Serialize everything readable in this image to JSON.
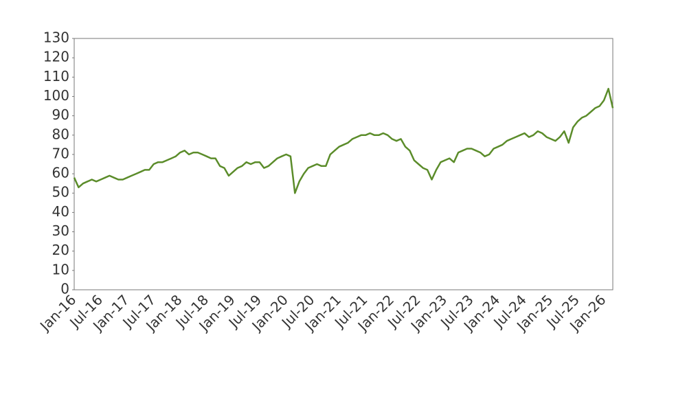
{
  "chart_data": {
    "type": "line",
    "color": "#5b8c2a",
    "x": [
      "Jan-16",
      "Feb-16",
      "Mar-16",
      "Apr-16",
      "May-16",
      "Jun-16",
      "Jul-16",
      "Aug-16",
      "Sep-16",
      "Oct-16",
      "Nov-16",
      "Dec-16",
      "Jan-17",
      "Feb-17",
      "Mar-17",
      "Apr-17",
      "May-17",
      "Jun-17",
      "Jul-17",
      "Aug-17",
      "Sep-17",
      "Oct-17",
      "Nov-17",
      "Dec-17",
      "Jan-18",
      "Feb-18",
      "Mar-18",
      "Apr-18",
      "May-18",
      "Jun-18",
      "Jul-18",
      "Aug-18",
      "Sep-18",
      "Oct-18",
      "Nov-18",
      "Dec-18",
      "Jan-19",
      "Feb-19",
      "Mar-19",
      "Apr-19",
      "May-19",
      "Jun-19",
      "Jul-19",
      "Aug-19",
      "Sep-19",
      "Oct-19",
      "Nov-19",
      "Dec-19",
      "Jan-20",
      "Feb-20",
      "Mar-20",
      "Apr-20",
      "May-20",
      "Jun-20",
      "Jul-20",
      "Aug-20",
      "Sep-20",
      "Oct-20",
      "Nov-20",
      "Dec-20",
      "Jan-21",
      "Feb-21",
      "Mar-21",
      "Apr-21",
      "May-21",
      "Jun-21",
      "Jul-21",
      "Aug-21",
      "Sep-21",
      "Oct-21",
      "Nov-21",
      "Dec-21",
      "Jan-22",
      "Feb-22",
      "Mar-22",
      "Apr-22",
      "May-22",
      "Jun-22",
      "Jul-22",
      "Aug-22",
      "Sep-22",
      "Oct-22",
      "Nov-22",
      "Dec-22",
      "Jan-23",
      "Feb-23",
      "Mar-23",
      "Apr-23",
      "May-23",
      "Jun-23",
      "Jul-23",
      "Aug-23",
      "Sep-23",
      "Oct-23",
      "Nov-23",
      "Dec-23",
      "Jan-24",
      "Feb-24",
      "Mar-24",
      "Apr-24",
      "May-24",
      "Jun-24",
      "Jul-24",
      "Aug-24",
      "Sep-24",
      "Oct-24",
      "Nov-24",
      "Dec-24",
      "Jan-25",
      "Feb-25",
      "Mar-25",
      "Apr-25",
      "May-25",
      "Jun-25",
      "Jul-25",
      "Aug-25",
      "Sep-25",
      "Oct-25",
      "Nov-25",
      "Dec-25",
      "Jan-26",
      "Feb-26",
      "Mar-26"
    ],
    "values": [
      58,
      53,
      55,
      56,
      57,
      56,
      57,
      58,
      59,
      58,
      57,
      57,
      58,
      59,
      60,
      61,
      62,
      62,
      65,
      66,
      66,
      67,
      68,
      69,
      71,
      72,
      70,
      71,
      71,
      70,
      69,
      68,
      68,
      64,
      63,
      59,
      61,
      63,
      64,
      66,
      65,
      66,
      66,
      63,
      64,
      66,
      68,
      69,
      70,
      69,
      50,
      56,
      60,
      63,
      64,
      65,
      64,
      64,
      70,
      72,
      74,
      75,
      76,
      78,
      79,
      80,
      80,
      81,
      80,
      80,
      81,
      80,
      78,
      77,
      78,
      74,
      72,
      67,
      65,
      63,
      62,
      57,
      62,
      66,
      67,
      68,
      66,
      71,
      72,
      73,
      73,
      72,
      71,
      69,
      70,
      73,
      74,
      75,
      77,
      78,
      79,
      80,
      81,
      79,
      80,
      82,
      81,
      79,
      78,
      77,
      79,
      82,
      76,
      84,
      87,
      89,
      90,
      92,
      94,
      95,
      98,
      104,
      94
    ],
    "xticks": [
      "Jan-16",
      "Jul-16",
      "Jan-17",
      "Jul-17",
      "Jan-18",
      "Jul-18",
      "Jan-19",
      "Jul-19",
      "Jan-20",
      "Jul-20",
      "Jan-21",
      "Jul-21",
      "Jan-22",
      "Jul-22",
      "Jan-23",
      "Jul-23",
      "Jan-24",
      "Jul-24",
      "Jan-25",
      "Jul-25",
      "Jan-26"
    ],
    "ylim": [
      0,
      130
    ],
    "yticks": [
      0,
      10,
      20,
      30,
      40,
      50,
      60,
      70,
      80,
      90,
      100,
      110,
      120,
      130
    ],
    "grid": false
  }
}
